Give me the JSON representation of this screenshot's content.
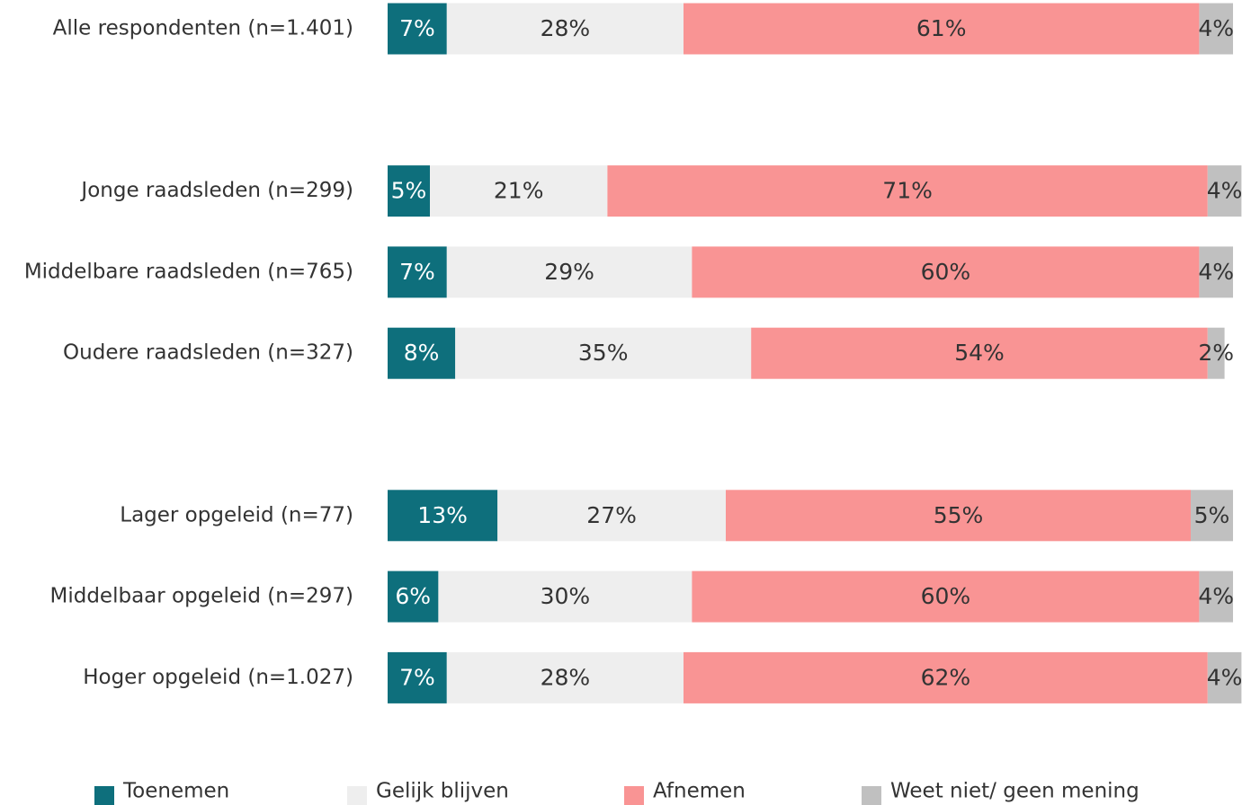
{
  "chart_data": {
    "type": "stacked_barh",
    "categories": [
      "Alle respondenten (n=1.401)",
      null,
      "Jonge raadsleden (n=299)",
      "Middelbare raadsleden (n=765)",
      "Oudere raadsleden (n=327)",
      null,
      "Lager opgeleid (n=77)",
      "Middelbaar opgeleid (n=297)",
      "Hoger opgeleid (n=1.027)"
    ],
    "xlim": [
      0,
      100
    ],
    "legend": "bottom",
    "series": [
      {
        "name": "Toenemen",
        "color": "#0e6f7c",
        "values": [
          7,
          null,
          5,
          7,
          8,
          null,
          13,
          6,
          7
        ],
        "value_labels": [
          "7%",
          null,
          "5%",
          "7%",
          "8%",
          null,
          "13%",
          "6%",
          "7%"
        ]
      },
      {
        "name": "Gelijk blijven",
        "color": "#eeeeee",
        "values": [
          28,
          null,
          21,
          29,
          35,
          null,
          27,
          30,
          28
        ],
        "value_labels": [
          "28%",
          null,
          "21%",
          "29%",
          "35%",
          null,
          "27%",
          "30%",
          "28%"
        ]
      },
      {
        "name": "Afnemen",
        "color": "#f99494",
        "values": [
          61,
          null,
          71,
          60,
          54,
          null,
          55,
          60,
          62
        ],
        "value_labels": [
          "61%",
          null,
          "71%",
          "60%",
          "54%",
          null,
          "55%",
          "60%",
          "62%"
        ]
      },
      {
        "name": "Weet niet/ geen mening",
        "color": "#c0c0c0",
        "values": [
          4,
          null,
          4,
          4,
          2,
          null,
          5,
          4,
          4
        ],
        "value_labels": [
          "4%",
          null,
          "4%",
          "4%",
          "2%",
          null,
          "5%",
          "4%",
          "4%"
        ]
      }
    ]
  }
}
